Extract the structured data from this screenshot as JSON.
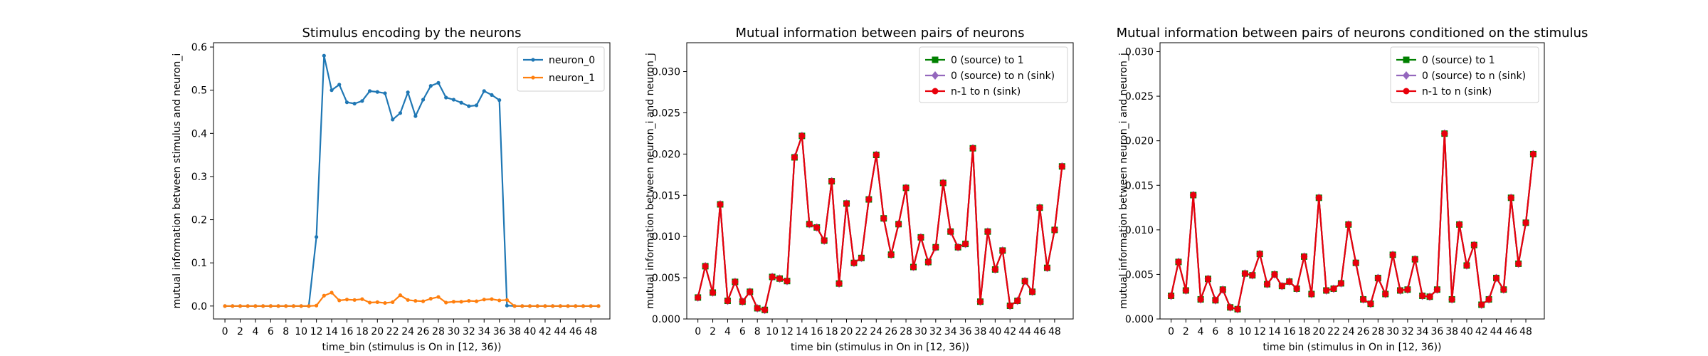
{
  "chart_data": [
    {
      "type": "line",
      "title": "Stimulus encoding by the neurons",
      "xlabel": "time_bin (stimulus is On in [12, 36))",
      "ylabel": "mutual information between stimulus and neuron_i",
      "xlim": [
        -1.5,
        50.5
      ],
      "ylim": [
        -0.03,
        0.61
      ],
      "xticks": [
        0,
        2,
        4,
        6,
        8,
        10,
        12,
        14,
        16,
        18,
        20,
        22,
        24,
        26,
        28,
        30,
        32,
        34,
        36,
        38,
        40,
        42,
        44,
        46,
        48
      ],
      "yticks": [
        0.0,
        0.1,
        0.2,
        0.3,
        0.4,
        0.5,
        0.6
      ],
      "ytick_labels": [
        "0.0",
        "0.1",
        "0.2",
        "0.3",
        "0.4",
        "0.5",
        "0.6"
      ],
      "legend_position": "top-right",
      "grid": false,
      "series": [
        {
          "name": "neuron_0",
          "color": "#1f77b4",
          "marker": "dot",
          "values": [
            0,
            0,
            0,
            0,
            0,
            0,
            0,
            0,
            0,
            0,
            0,
            0,
            0.16,
            0.58,
            0.5,
            0.513,
            0.472,
            0.469,
            0.475,
            0.498,
            0.496,
            0.493,
            0.432,
            0.447,
            0.495,
            0.44,
            0.478,
            0.51,
            0.517,
            0.483,
            0.478,
            0.471,
            0.463,
            0.465,
            0.498,
            0.489,
            0.477,
            0.001,
            0,
            0,
            0,
            0,
            0,
            0,
            0,
            0,
            0,
            0,
            0,
            0
          ]
        },
        {
          "name": "neuron_1",
          "color": "#ff7f0e",
          "marker": "dot",
          "values": [
            0,
            0,
            0,
            0,
            0,
            0,
            0,
            0,
            0,
            0,
            0,
            0,
            0.001,
            0.024,
            0.031,
            0.013,
            0.015,
            0.014,
            0.016,
            0.008,
            0.009,
            0.007,
            0.009,
            0.025,
            0.014,
            0.012,
            0.011,
            0.017,
            0.021,
            0.008,
            0.01,
            0.01,
            0.012,
            0.011,
            0.015,
            0.016,
            0.013,
            0.014,
            0,
            0,
            0,
            0,
            0,
            0,
            0,
            0,
            0,
            0,
            0,
            0
          ]
        }
      ]
    },
    {
      "type": "line",
      "title": "Mutual information between pairs of neurons",
      "xlabel": "time bin (stimulus in On in [12, 36))",
      "ylabel": "mutual information between neuron_i and neuron_j",
      "xlim": [
        -1.5,
        50.5
      ],
      "ylim": [
        0,
        0.0335
      ],
      "xticks": [
        0,
        2,
        4,
        6,
        8,
        10,
        12,
        14,
        16,
        18,
        20,
        22,
        24,
        26,
        28,
        30,
        32,
        34,
        36,
        38,
        40,
        42,
        44,
        46,
        48
      ],
      "yticks": [
        0.0,
        0.005,
        0.01,
        0.015,
        0.02,
        0.025,
        0.03
      ],
      "ytick_labels": [
        "0.000",
        "0.005",
        "0.010",
        "0.015",
        "0.020",
        "0.025",
        "0.030"
      ],
      "legend_position": "top-right",
      "grid": false,
      "series": [
        {
          "name": "0 (source) to 1",
          "color": "#008000",
          "marker": "square",
          "values": [
            0.0026,
            0.0064,
            0.0032,
            0.0139,
            0.0022,
            0.0045,
            0.0021,
            0.0033,
            0.0013,
            0.0011,
            0.0051,
            0.0049,
            0.0046,
            0.0196,
            0.0222,
            0.0115,
            0.0111,
            0.0095,
            0.0167,
            0.0043,
            0.014,
            0.0068,
            0.0074,
            0.0145,
            0.0199,
            0.0122,
            0.0078,
            0.0115,
            0.0159,
            0.0063,
            0.0099,
            0.0069,
            0.0087,
            0.0165,
            0.0106,
            0.0087,
            0.0091,
            0.0207,
            0.0021,
            0.0106,
            0.006,
            0.0083,
            0.0016,
            0.0022,
            0.0046,
            0.0033,
            0.0135,
            0.0062,
            0.0108,
            0.0185
          ]
        },
        {
          "name": "0 (source) to n (sink)",
          "color": "#9467bd",
          "marker": "diamond",
          "values": [
            0.0026,
            0.0064,
            0.0032,
            0.0139,
            0.0022,
            0.0045,
            0.0021,
            0.0033,
            0.0013,
            0.0011,
            0.0051,
            0.0049,
            0.0046,
            0.0196,
            0.0222,
            0.0115,
            0.0111,
            0.0095,
            0.0167,
            0.0043,
            0.014,
            0.0068,
            0.0074,
            0.0145,
            0.0199,
            0.0122,
            0.0078,
            0.0115,
            0.0159,
            0.0063,
            0.0099,
            0.0069,
            0.0087,
            0.0165,
            0.0106,
            0.0087,
            0.0091,
            0.0207,
            0.0021,
            0.0106,
            0.006,
            0.0083,
            0.0016,
            0.0022,
            0.0046,
            0.0033,
            0.0135,
            0.0062,
            0.0108,
            0.0185
          ]
        },
        {
          "name": "n-1 to n (sink)",
          "color": "#e8000b",
          "marker": "dot",
          "values": [
            0.0026,
            0.0064,
            0.0032,
            0.0139,
            0.0022,
            0.0045,
            0.0021,
            0.0033,
            0.0013,
            0.0011,
            0.0051,
            0.0049,
            0.0046,
            0.0196,
            0.0222,
            0.0115,
            0.0111,
            0.0095,
            0.0167,
            0.0043,
            0.014,
            0.0068,
            0.0074,
            0.0145,
            0.0199,
            0.0122,
            0.0078,
            0.0115,
            0.0159,
            0.0063,
            0.0099,
            0.0069,
            0.0087,
            0.0165,
            0.0106,
            0.0087,
            0.0091,
            0.0207,
            0.0021,
            0.0106,
            0.006,
            0.0083,
            0.0016,
            0.0022,
            0.0046,
            0.0033,
            0.0135,
            0.0062,
            0.0108,
            0.0185
          ]
        }
      ]
    },
    {
      "type": "line",
      "title": "Mutual information between pairs of neurons conditioned on the stimulus",
      "xlabel": "time bin (stimulus in On in [12, 36))",
      "ylabel": "mutual information between neuron_i and neuron_j",
      "xlim": [
        -1.5,
        50.5
      ],
      "ylim": [
        0,
        0.031
      ],
      "xticks": [
        0,
        2,
        4,
        6,
        8,
        10,
        12,
        14,
        16,
        18,
        20,
        22,
        24,
        26,
        28,
        30,
        32,
        34,
        36,
        38,
        40,
        42,
        44,
        46,
        48
      ],
      "yticks": [
        0.0,
        0.005,
        0.01,
        0.015,
        0.02,
        0.025,
        0.03
      ],
      "ytick_labels": [
        "0.000",
        "0.005",
        "0.010",
        "0.015",
        "0.020",
        "0.025",
        "0.030"
      ],
      "legend_position": "top-right",
      "grid": false,
      "series": [
        {
          "name": "0 (source) to 1",
          "color": "#008000",
          "marker": "square",
          "values": [
            0.0026,
            0.0064,
            0.0032,
            0.0139,
            0.0022,
            0.0045,
            0.0021,
            0.0033,
            0.0013,
            0.0011,
            0.0051,
            0.0049,
            0.0073,
            0.0039,
            0.005,
            0.0037,
            0.0042,
            0.0034,
            0.007,
            0.0028,
            0.0136,
            0.0032,
            0.0034,
            0.004,
            0.0106,
            0.0063,
            0.0022,
            0.0017,
            0.0046,
            0.0028,
            0.0072,
            0.0032,
            0.0033,
            0.0067,
            0.0026,
            0.0025,
            0.0033,
            0.0208,
            0.0022,
            0.0106,
            0.006,
            0.0083,
            0.0016,
            0.0022,
            0.0046,
            0.0033,
            0.0136,
            0.0062,
            0.0108,
            0.0185
          ]
        },
        {
          "name": "0 (source) to n (sink)",
          "color": "#9467bd",
          "marker": "diamond",
          "values": [
            0.0026,
            0.0064,
            0.0032,
            0.0139,
            0.0022,
            0.0045,
            0.0021,
            0.0033,
            0.0013,
            0.0011,
            0.0051,
            0.0049,
            0.0073,
            0.0039,
            0.005,
            0.0037,
            0.0042,
            0.0034,
            0.007,
            0.0028,
            0.0136,
            0.0032,
            0.0034,
            0.004,
            0.0106,
            0.0063,
            0.0022,
            0.0017,
            0.0046,
            0.0028,
            0.0072,
            0.0032,
            0.0033,
            0.0067,
            0.0026,
            0.0025,
            0.0033,
            0.0208,
            0.0022,
            0.0106,
            0.006,
            0.0083,
            0.0016,
            0.0022,
            0.0046,
            0.0033,
            0.0136,
            0.0062,
            0.0108,
            0.0185
          ]
        },
        {
          "name": "n-1 to n (sink)",
          "color": "#e8000b",
          "marker": "dot",
          "values": [
            0.0026,
            0.0064,
            0.0032,
            0.0139,
            0.0022,
            0.0045,
            0.0021,
            0.0033,
            0.0013,
            0.0011,
            0.0051,
            0.0049,
            0.0073,
            0.0039,
            0.005,
            0.0037,
            0.0042,
            0.0034,
            0.007,
            0.0028,
            0.0136,
            0.0032,
            0.0034,
            0.004,
            0.0106,
            0.0063,
            0.0022,
            0.0017,
            0.0046,
            0.0028,
            0.0072,
            0.0032,
            0.0033,
            0.0067,
            0.0026,
            0.0025,
            0.0033,
            0.0208,
            0.0022,
            0.0106,
            0.006,
            0.0083,
            0.0016,
            0.0022,
            0.0046,
            0.0033,
            0.0136,
            0.0062,
            0.0108,
            0.0185
          ]
        }
      ]
    }
  ]
}
